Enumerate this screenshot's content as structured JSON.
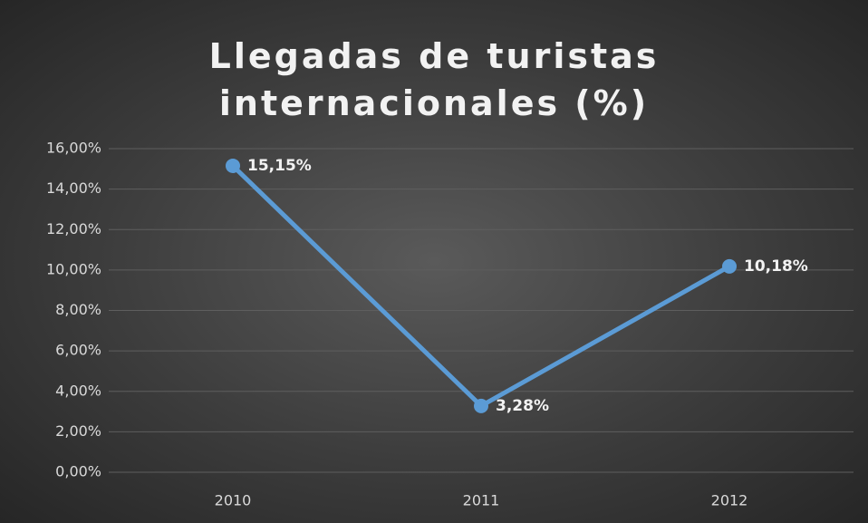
{
  "chart_data": {
    "type": "line",
    "title": "Llegadas de turistas internacionales (%)",
    "categories": [
      "2010",
      "2011",
      "2012"
    ],
    "series": [
      {
        "name": "Llegadas de turistas internacionales (%)",
        "color": "#5b9bd5",
        "values": [
          15.15,
          3.28,
          10.18
        ],
        "value_labels": [
          "15,15%",
          "3,28%",
          "10,18%"
        ]
      }
    ],
    "ylim": [
      0,
      16
    ],
    "yticks": [
      {
        "value": 0,
        "label": "0,00%"
      },
      {
        "value": 2,
        "label": "2,00%"
      },
      {
        "value": 4,
        "label": "4,00%"
      },
      {
        "value": 6,
        "label": "6,00%"
      },
      {
        "value": 8,
        "label": "8,00%"
      },
      {
        "value": 10,
        "label": "10,00%"
      },
      {
        "value": 12,
        "label": "12,00%"
      },
      {
        "value": 14,
        "label": "14,00%"
      },
      {
        "value": 16,
        "label": "16,00%"
      }
    ],
    "grid": true
  }
}
